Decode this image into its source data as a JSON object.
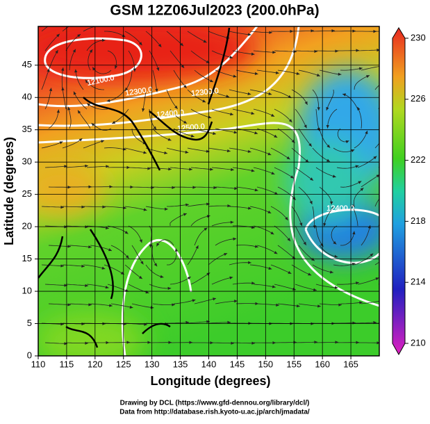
{
  "title": "GSM 12Z06Jul2023 (200.0hPa)",
  "x_axis": {
    "label": "Longitude (degrees)",
    "lim": [
      110,
      170
    ],
    "ticks": [
      110,
      115,
      120,
      125,
      130,
      135,
      140,
      145,
      150,
      155,
      160,
      165
    ]
  },
  "y_axis": {
    "label": "Latitude  (degrees)",
    "lim": [
      0,
      51
    ],
    "ticks": [
      0,
      5,
      10,
      15,
      20,
      25,
      30,
      35,
      40,
      45
    ]
  },
  "colorbar": {
    "lim": [
      210,
      230
    ],
    "ticks": [
      210,
      214,
      218,
      222,
      226,
      230
    ]
  },
  "contour_labels": [
    "12100.0",
    "12300.0",
    "12300.0",
    "12400.0",
    "12500.0",
    "12400.0"
  ],
  "credits": [
    "Drawing by DCL (https://www.gfd-dennou.org/library/dcl/)",
    "Data from http://database.rish.kyoto-u.ac.jp/arch/jmadata/"
  ]
}
